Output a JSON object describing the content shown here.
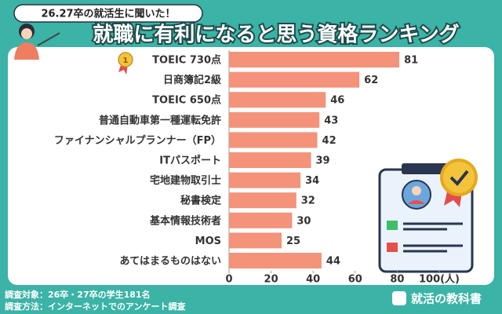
{
  "chart_data": {
    "type": "bar",
    "orientation": "horizontal",
    "subtitle": "26.27卒の就活生に聞いた！",
    "title": "就職に有利になると思う資格ランキング",
    "rank_badge": "1",
    "categories": [
      "TOEIC 730点",
      "日商簿記2級",
      "TOEIC 650点",
      "普通自動車第一種運転免許",
      "ファイナンシャルプランナー（FP）",
      "ITパスポート",
      "宅地建物取引士",
      "秘書検定",
      "基本情報技術者",
      "MOS",
      "あてはまるものはない"
    ],
    "values": [
      81,
      62,
      46,
      43,
      42,
      39,
      34,
      32,
      30,
      25,
      44
    ],
    "color": "#f4937a",
    "xlim": [
      0,
      100
    ],
    "xticks": [
      0,
      20,
      40,
      60,
      80,
      {
        "value": 100,
        "label": "100(人)"
      }
    ],
    "notes": [
      "調査対象：26卒・27卒の学生181名",
      "調査方法：インターネットでのアンケート調査"
    ],
    "brand": "就活の教科書"
  }
}
